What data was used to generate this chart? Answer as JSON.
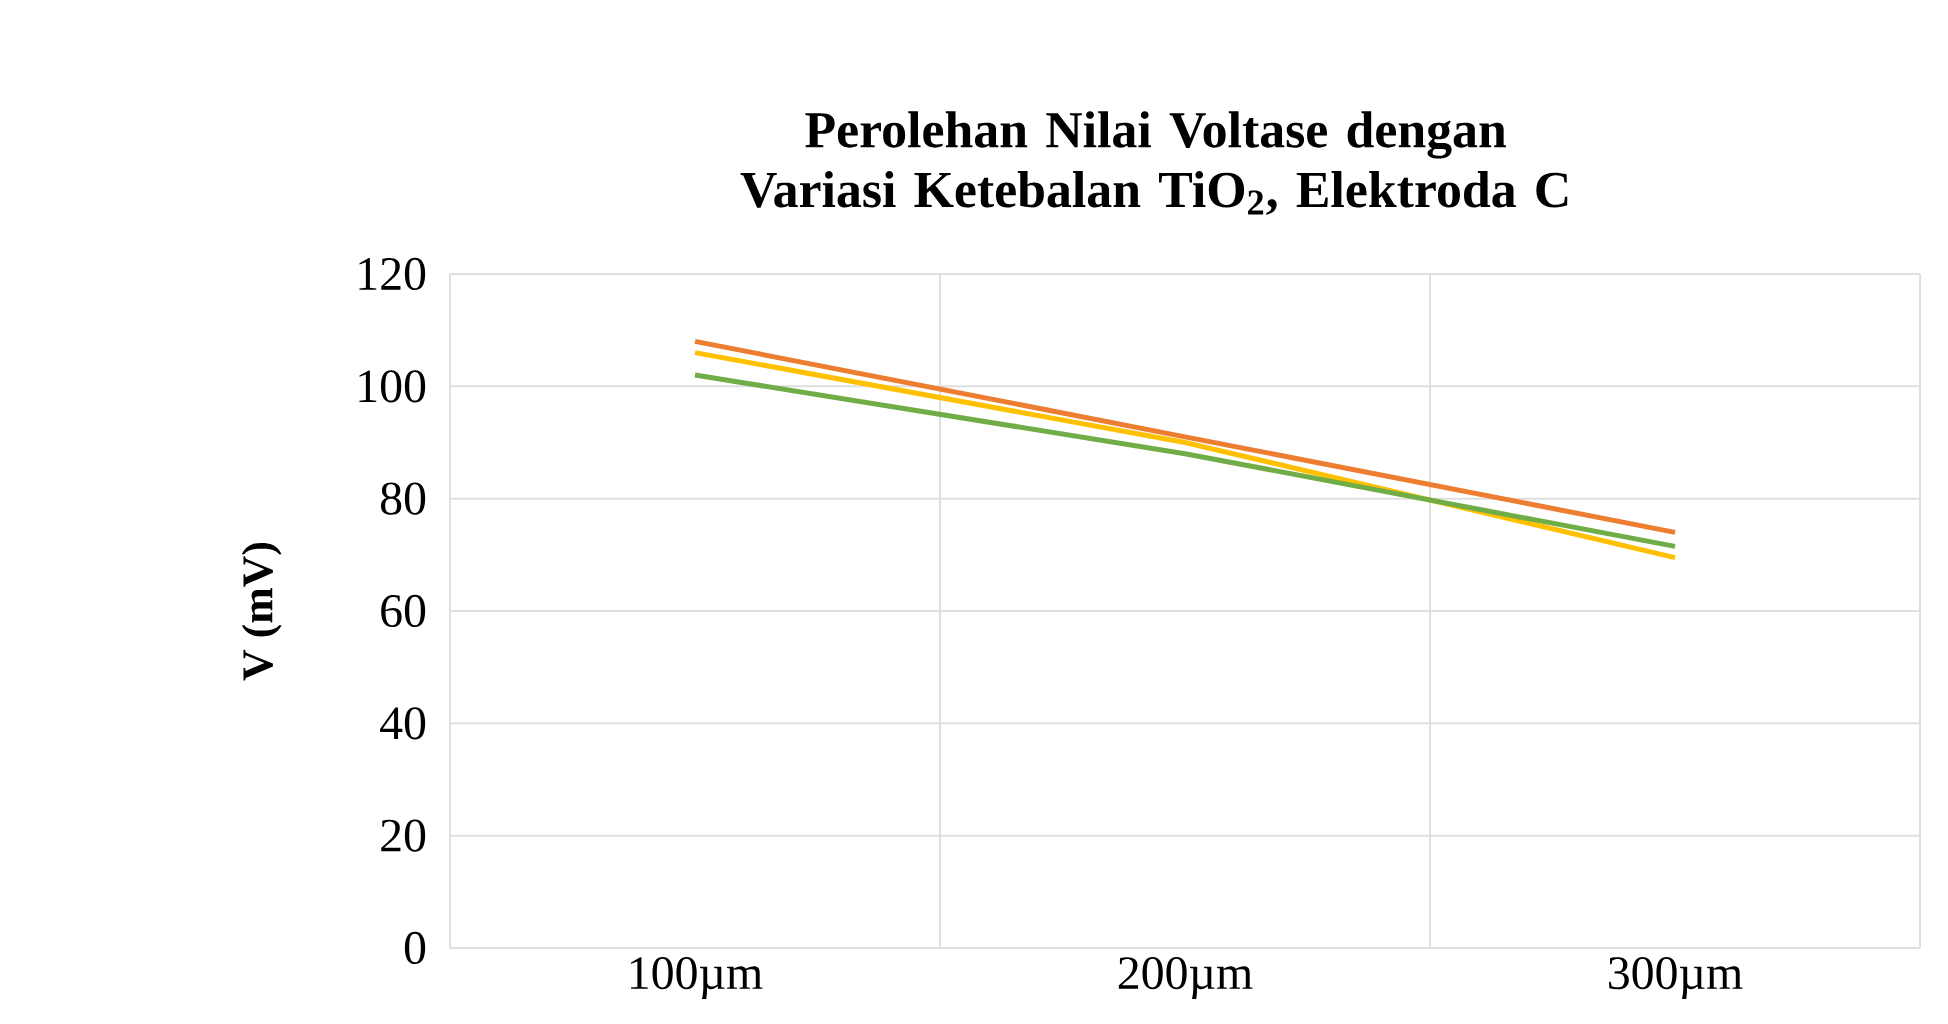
{
  "chart_data": {
    "type": "line",
    "title": "Perolehan Nilai Voltase dengan Variasi Ketebalan TiO$_{2}$, Elektroda C",
    "ylabel": "V (mV)",
    "categories": [
      "100µm",
      "200µm",
      "300µm"
    ],
    "series": [
      {
        "color": "#ed7d31",
        "values": [
          108,
          91,
          74
        ]
      },
      {
        "color": "#ffc000",
        "values": [
          106,
          90,
          69.5
        ]
      },
      {
        "color": "#70ad47",
        "values": [
          102,
          88,
          71.5
        ]
      }
    ],
    "ylim": [
      0,
      120
    ],
    "yticks": [
      0,
      20,
      40,
      60,
      80,
      100,
      120
    ],
    "grid": true,
    "marker": "none",
    "line_style": "solid"
  }
}
